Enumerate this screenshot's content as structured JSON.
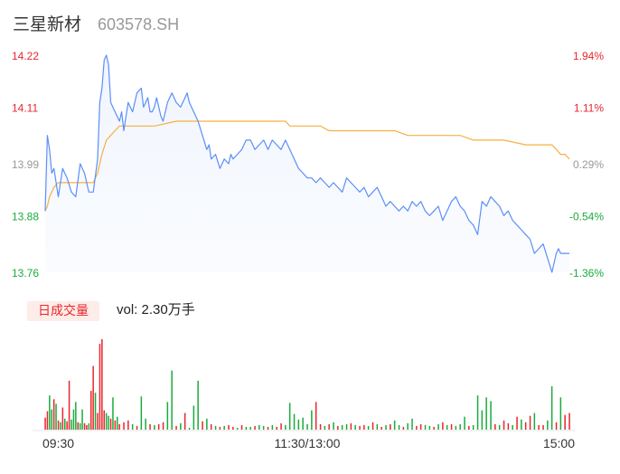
{
  "header": {
    "name": "三星新材",
    "code": "603578.SH"
  },
  "volume_panel": {
    "badge": "日成交量",
    "vol_label": "vol: 2.30万手"
  },
  "colors": {
    "price_line": "#5b8ff9",
    "avg_line": "#f5b041",
    "up": "#e8262d",
    "down": "#1aab3b",
    "flat_label": "#999999",
    "badge_bg": "#fdece8"
  },
  "chart_data": {
    "type": "line",
    "title": "",
    "price_axis": {
      "ticks": [
        14.22,
        14.11,
        13.99,
        13.88,
        13.76
      ],
      "tick_labels": [
        "14.22",
        "14.11",
        "13.99",
        "13.88",
        "13.76"
      ],
      "ylim": [
        13.76,
        14.22
      ]
    },
    "pct_axis": {
      "tick_labels": [
        "1.94%",
        "1.11%",
        "0.29%",
        "-0.54%",
        "-1.36%"
      ],
      "label_colors": [
        "up",
        "up",
        "flat",
        "down",
        "down"
      ]
    },
    "x_axis": {
      "tick_labels": [
        "09:30",
        "11:30/13:00",
        "15:00"
      ],
      "tick_positions_min": [
        0,
        120,
        240
      ],
      "xlim": [
        0,
        240
      ]
    },
    "series": [
      {
        "key": "price",
        "x": [
          0,
          1,
          2,
          3,
          4,
          5,
          6,
          8,
          10,
          12,
          14,
          16,
          18,
          19,
          20,
          22,
          24,
          25,
          26,
          27,
          28,
          29,
          30,
          32,
          34,
          35,
          36,
          37,
          38,
          40,
          42,
          44,
          45,
          46,
          47,
          48,
          49,
          50,
          51,
          52,
          53,
          54,
          56,
          58,
          60,
          62,
          64,
          65,
          66,
          68,
          70,
          72,
          74,
          75,
          76,
          78,
          80,
          82,
          84,
          85,
          86,
          88,
          90,
          92,
          94,
          96,
          98,
          100,
          102,
          104,
          106,
          108,
          110,
          112,
          114,
          116,
          118,
          120,
          122,
          124,
          126,
          128,
          130,
          132,
          134,
          136,
          138,
          140,
          142,
          144,
          146,
          148,
          150,
          152,
          154,
          156,
          158,
          160,
          162,
          164,
          166,
          168,
          170,
          172,
          174,
          176,
          178,
          180,
          182,
          184,
          186,
          188,
          190,
          192,
          194,
          196,
          198,
          200,
          202,
          204,
          206,
          208,
          210,
          212,
          214,
          216,
          218,
          220,
          222,
          224,
          226,
          228,
          230,
          232,
          234,
          235,
          236,
          237,
          238,
          239,
          240
        ],
        "values": [
          13.89,
          14.05,
          14.02,
          13.97,
          13.98,
          13.95,
          13.92,
          13.98,
          13.96,
          13.93,
          13.92,
          13.99,
          13.97,
          13.95,
          13.93,
          13.93,
          14.0,
          14.12,
          14.15,
          14.21,
          14.22,
          14.2,
          14.12,
          14.1,
          14.08,
          14.1,
          14.06,
          14.09,
          14.12,
          14.1,
          14.14,
          14.15,
          14.11,
          14.12,
          14.13,
          14.1,
          14.1,
          14.11,
          14.13,
          14.11,
          14.09,
          14.08,
          14.12,
          14.14,
          14.12,
          14.11,
          14.13,
          14.14,
          14.12,
          14.1,
          14.08,
          14.05,
          14.02,
          14.03,
          14.0,
          14.01,
          13.98,
          14.0,
          13.99,
          14.01,
          14.0,
          14.01,
          14.02,
          14.04,
          14.04,
          14.02,
          14.03,
          14.04,
          14.02,
          14.04,
          14.03,
          14.02,
          14.04,
          14.02,
          14.0,
          13.98,
          13.97,
          13.96,
          13.96,
          13.95,
          13.96,
          13.95,
          13.94,
          13.95,
          13.94,
          13.93,
          13.96,
          13.95,
          13.94,
          13.93,
          13.94,
          13.92,
          13.93,
          13.94,
          13.92,
          13.9,
          13.91,
          13.9,
          13.89,
          13.9,
          13.89,
          13.91,
          13.9,
          13.91,
          13.89,
          13.88,
          13.89,
          13.9,
          13.87,
          13.89,
          13.91,
          13.92,
          13.9,
          13.89,
          13.87,
          13.86,
          13.84,
          13.91,
          13.9,
          13.92,
          13.91,
          13.9,
          13.88,
          13.89,
          13.87,
          13.86,
          13.85,
          13.84,
          13.83,
          13.8,
          13.81,
          13.82,
          13.79,
          13.76,
          13.8,
          13.81,
          13.8,
          13.8,
          13.8,
          13.8,
          13.8
        ]
      },
      {
        "key": "average",
        "x": [
          0,
          1,
          2,
          4,
          6,
          8,
          10,
          14,
          18,
          22,
          24,
          26,
          28,
          30,
          32,
          34,
          36,
          40,
          50,
          60,
          66,
          70,
          80,
          90,
          100,
          110,
          112,
          120,
          126,
          130,
          136,
          140,
          150,
          160,
          166,
          170,
          180,
          190,
          196,
          200,
          210,
          220,
          230,
          232,
          234,
          236,
          238,
          240
        ],
        "values": [
          13.89,
          13.9,
          13.92,
          13.94,
          13.95,
          13.95,
          13.95,
          13.95,
          13.95,
          13.95,
          13.97,
          14.01,
          14.04,
          14.05,
          14.06,
          14.07,
          14.07,
          14.07,
          14.07,
          14.08,
          14.08,
          14.08,
          14.08,
          14.08,
          14.08,
          14.08,
          14.07,
          14.07,
          14.07,
          14.06,
          14.06,
          14.06,
          14.06,
          14.06,
          14.05,
          14.05,
          14.05,
          14.05,
          14.04,
          14.04,
          14.04,
          14.03,
          14.03,
          14.03,
          14.02,
          14.01,
          14.01,
          14.0
        ]
      }
    ],
    "volume": {
      "x": [
        0,
        1,
        2,
        3,
        4,
        5,
        6,
        7,
        8,
        9,
        10,
        11,
        12,
        13,
        14,
        15,
        16,
        17,
        18,
        19,
        20,
        21,
        22,
        23,
        24,
        25,
        26,
        27,
        28,
        29,
        30,
        31,
        32,
        33,
        34,
        36,
        38,
        40,
        42,
        44,
        46,
        48,
        50,
        52,
        54,
        56,
        58,
        60,
        62,
        64,
        66,
        68,
        70,
        72,
        74,
        76,
        78,
        80,
        82,
        84,
        86,
        88,
        90,
        92,
        94,
        96,
        98,
        100,
        102,
        104,
        106,
        108,
        110,
        112,
        114,
        116,
        118,
        120,
        122,
        124,
        126,
        128,
        130,
        132,
        134,
        136,
        138,
        140,
        142,
        144,
        146,
        148,
        150,
        152,
        154,
        156,
        158,
        160,
        162,
        164,
        166,
        168,
        170,
        172,
        174,
        176,
        178,
        180,
        182,
        184,
        186,
        188,
        190,
        192,
        194,
        196,
        198,
        200,
        202,
        204,
        206,
        208,
        210,
        212,
        214,
        216,
        218,
        220,
        222,
        224,
        226,
        228,
        230,
        232,
        234,
        236,
        238,
        240
      ],
      "values": [
        0.13,
        0.2,
        0.37,
        0.22,
        0.33,
        0.28,
        0.1,
        0.08,
        0.24,
        0.12,
        0.09,
        0.53,
        0.11,
        0.22,
        0.3,
        0.08,
        0.07,
        0.22,
        0.07,
        0.05,
        0.07,
        0.42,
        0.69,
        0.4,
        0.18,
        0.93,
        0.98,
        0.21,
        0.18,
        0.15,
        0.12,
        0.35,
        0.1,
        0.14,
        0.06,
        0.08,
        0.1,
        0.06,
        0.04,
        0.36,
        0.12,
        0.06,
        0.05,
        0.06,
        0.08,
        0.3,
        0.64,
        0.04,
        0.07,
        0.18,
        0.02,
        0.26,
        0.53,
        0.09,
        0.12,
        0.06,
        0.04,
        0.03,
        0.04,
        0.05,
        0.03,
        0.02,
        0.05,
        0.03,
        0.03,
        0.04,
        0.05,
        0.04,
        0.03,
        0.05,
        0.03,
        0.07,
        0.05,
        0.29,
        0.17,
        0.11,
        0.13,
        0.06,
        0.21,
        0.3,
        0.06,
        0.04,
        0.06,
        0.08,
        0.04,
        0.05,
        0.06,
        0.07,
        0.05,
        0.04,
        0.05,
        0.04,
        0.08,
        0.06,
        0.03,
        0.05,
        0.06,
        0.1,
        0.05,
        0.03,
        0.07,
        0.12,
        0.04,
        0.06,
        0.05,
        0.04,
        0.03,
        0.06,
        0.08,
        0.05,
        0.06,
        0.04,
        0.06,
        0.14,
        0.04,
        0.05,
        0.37,
        0.21,
        0.35,
        0.31,
        0.06,
        0.05,
        0.1,
        0.07,
        0.05,
        0.14,
        0.11,
        0.08,
        0.15,
        0.18,
        0.05,
        0.05,
        0.1,
        0.47,
        0.08,
        0.35,
        0.16,
        0.18
      ],
      "direction": [
        "up",
        "up",
        "down",
        "down",
        "up",
        "down",
        "up",
        "down",
        "up",
        "down",
        "up",
        "up",
        "down",
        "down",
        "down",
        "up",
        "down",
        "down",
        "up",
        "up",
        "down",
        "up",
        "up",
        "down",
        "up",
        "up",
        "up",
        "up",
        "down",
        "down",
        "up",
        "down",
        "up",
        "down",
        "up",
        "up",
        "up",
        "down",
        "up",
        "down",
        "down",
        "up",
        "down",
        "up",
        "up",
        "down",
        "down",
        "up",
        "down",
        "up",
        "down",
        "down",
        "down",
        "up",
        "down",
        "up",
        "down",
        "up",
        "down",
        "up",
        "up",
        "down",
        "up",
        "down",
        "down",
        "up",
        "down",
        "down",
        "up",
        "down",
        "up",
        "up",
        "down",
        "down",
        "down",
        "down",
        "down",
        "down",
        "down",
        "up",
        "up",
        "down",
        "up",
        "down",
        "up",
        "down",
        "down",
        "up",
        "down",
        "up",
        "up",
        "down",
        "up",
        "down",
        "up",
        "down",
        "up",
        "down",
        "down",
        "up",
        "down",
        "down",
        "up",
        "up",
        "down",
        "down",
        "up",
        "down",
        "up",
        "down",
        "up",
        "down",
        "down",
        "down",
        "up",
        "down",
        "down",
        "down",
        "down",
        "down",
        "up",
        "down",
        "up",
        "up",
        "down",
        "up",
        "down",
        "up",
        "up",
        "down",
        "up",
        "up",
        "down",
        "down",
        "up",
        "down",
        "up",
        "up"
      ]
    }
  }
}
